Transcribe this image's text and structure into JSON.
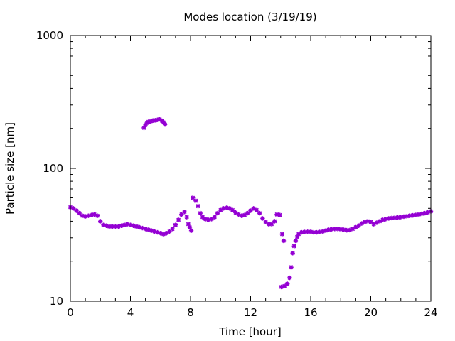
{
  "chart_data": {
    "type": "scatter",
    "title": "Modes location (3/19/19)",
    "xlabel": "Time [hour]",
    "ylabel": "Particle size [nm]",
    "xlim": [
      0,
      24
    ],
    "ylim": [
      10,
      1000
    ],
    "yscale": "log",
    "x_ticks": [
      0,
      4,
      8,
      12,
      16,
      20,
      24
    ],
    "x_tick_labels": [
      "0",
      "4",
      "8",
      "12",
      "16",
      "20",
      "24"
    ],
    "y_ticks": [
      10,
      100,
      1000
    ],
    "y_tick_labels": [
      "10",
      "100",
      "1000"
    ],
    "grid": false,
    "legend": "none",
    "marker_color": "#9400d3",
    "series": [
      {
        "points": [
          [
            0.0,
            51
          ],
          [
            0.2,
            50
          ],
          [
            0.4,
            48
          ],
          [
            0.6,
            46
          ],
          [
            0.8,
            44
          ],
          [
            1.0,
            43.5
          ],
          [
            1.2,
            44
          ],
          [
            1.4,
            44.5
          ],
          [
            1.6,
            45
          ],
          [
            1.8,
            44
          ],
          [
            2.0,
            40
          ],
          [
            2.2,
            37.5
          ],
          [
            2.4,
            37
          ],
          [
            2.6,
            36.5
          ],
          [
            2.8,
            36.5
          ],
          [
            3.0,
            36.5
          ],
          [
            3.2,
            36.5
          ],
          [
            3.4,
            37
          ],
          [
            3.6,
            37.5
          ],
          [
            3.8,
            38
          ],
          [
            4.0,
            37.5
          ],
          [
            4.2,
            37
          ],
          [
            4.4,
            36.5
          ],
          [
            4.6,
            36
          ],
          [
            4.8,
            35.5
          ],
          [
            5.0,
            35
          ],
          [
            5.2,
            34.5
          ],
          [
            5.4,
            34
          ],
          [
            5.6,
            33.5
          ],
          [
            5.8,
            33
          ],
          [
            6.0,
            32.5
          ],
          [
            6.2,
            32
          ],
          [
            6.4,
            32.5
          ],
          [
            6.6,
            33.5
          ],
          [
            6.8,
            35
          ],
          [
            7.0,
            37.5
          ],
          [
            7.2,
            41
          ],
          [
            7.4,
            45
          ],
          [
            7.6,
            47
          ],
          [
            7.75,
            43
          ],
          [
            7.85,
            38
          ],
          [
            7.95,
            36
          ],
          [
            8.05,
            34
          ],
          [
            8.15,
            60
          ],
          [
            8.35,
            57
          ],
          [
            8.5,
            52
          ],
          [
            8.65,
            46
          ],
          [
            8.8,
            43
          ],
          [
            9.0,
            41.5
          ],
          [
            9.2,
            41
          ],
          [
            9.4,
            41.5
          ],
          [
            9.6,
            43
          ],
          [
            9.8,
            46
          ],
          [
            10.0,
            48.5
          ],
          [
            10.2,
            50
          ],
          [
            10.4,
            50.5
          ],
          [
            10.6,
            50
          ],
          [
            10.8,
            48.5
          ],
          [
            11.0,
            46.5
          ],
          [
            11.2,
            45
          ],
          [
            11.4,
            44
          ],
          [
            11.6,
            44.5
          ],
          [
            11.8,
            46
          ],
          [
            12.0,
            48
          ],
          [
            12.2,
            50
          ],
          [
            12.4,
            48.5
          ],
          [
            12.6,
            46
          ],
          [
            12.8,
            42
          ],
          [
            13.0,
            39.5
          ],
          [
            13.2,
            38
          ],
          [
            13.4,
            38
          ],
          [
            13.6,
            40
          ],
          [
            13.75,
            45
          ],
          [
            13.95,
            44.5
          ],
          [
            14.1,
            32
          ],
          [
            14.2,
            28.5
          ],
          [
            14.05,
            12.8
          ],
          [
            14.25,
            13
          ],
          [
            14.45,
            13.5
          ],
          [
            14.6,
            15
          ],
          [
            14.7,
            18
          ],
          [
            14.8,
            23
          ],
          [
            14.9,
            26
          ],
          [
            15.0,
            28.5
          ],
          [
            15.1,
            30.5
          ],
          [
            15.2,
            32
          ],
          [
            15.4,
            33
          ],
          [
            15.6,
            33.2
          ],
          [
            15.8,
            33.3
          ],
          [
            16.0,
            33.3
          ],
          [
            16.2,
            33
          ],
          [
            16.4,
            33
          ],
          [
            16.6,
            33.2
          ],
          [
            16.8,
            33.5
          ],
          [
            17.0,
            34
          ],
          [
            17.2,
            34.5
          ],
          [
            17.4,
            34.8
          ],
          [
            17.6,
            35
          ],
          [
            17.8,
            35
          ],
          [
            18.0,
            34.8
          ],
          [
            18.2,
            34.5
          ],
          [
            18.4,
            34.2
          ],
          [
            18.6,
            34.3
          ],
          [
            18.8,
            35
          ],
          [
            19.0,
            36
          ],
          [
            19.2,
            37
          ],
          [
            19.4,
            38.5
          ],
          [
            19.6,
            39.5
          ],
          [
            19.8,
            40
          ],
          [
            20.0,
            39.5
          ],
          [
            20.2,
            38
          ],
          [
            20.4,
            39
          ],
          [
            20.6,
            40
          ],
          [
            20.8,
            41
          ],
          [
            21.0,
            41.5
          ],
          [
            21.2,
            42
          ],
          [
            21.4,
            42.3
          ],
          [
            21.6,
            42.5
          ],
          [
            21.8,
            42.7
          ],
          [
            22.0,
            43
          ],
          [
            22.2,
            43.3
          ],
          [
            22.4,
            43.6
          ],
          [
            22.6,
            44
          ],
          [
            22.8,
            44.3
          ],
          [
            23.0,
            44.6
          ],
          [
            23.2,
            45
          ],
          [
            23.4,
            45.5
          ],
          [
            23.6,
            46
          ],
          [
            23.8,
            46.6
          ],
          [
            24.0,
            47.5
          ],
          [
            4.9,
            202
          ],
          [
            5.0,
            212
          ],
          [
            5.1,
            220
          ],
          [
            5.2,
            224
          ],
          [
            5.35,
            226
          ],
          [
            5.5,
            229
          ],
          [
            5.65,
            230
          ],
          [
            5.8,
            232
          ],
          [
            5.95,
            234
          ],
          [
            6.1,
            228
          ],
          [
            6.2,
            222
          ],
          [
            6.3,
            214
          ]
        ]
      }
    ]
  }
}
